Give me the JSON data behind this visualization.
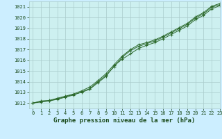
{
  "title": "Graphe pression niveau de la mer (hPa)",
  "bg_color": "#cceeff",
  "plot_bg_color": "#cdf0f0",
  "grid_color": "#aacccc",
  "line_color": "#2d6a2d",
  "marker_color": "#2d6a2d",
  "text_color": "#1a4a1a",
  "xlim": [
    -0.5,
    23
  ],
  "ylim": [
    1011.5,
    1021.5
  ],
  "yticks": [
    1012,
    1013,
    1014,
    1015,
    1016,
    1017,
    1018,
    1019,
    1020,
    1021
  ],
  "xticks": [
    0,
    1,
    2,
    3,
    4,
    5,
    6,
    7,
    8,
    9,
    10,
    11,
    12,
    13,
    14,
    15,
    16,
    17,
    18,
    19,
    20,
    21,
    22,
    23
  ],
  "series": [
    [
      1012.0,
      1012.15,
      1012.2,
      1012.4,
      1012.6,
      1012.8,
      1013.0,
      1013.3,
      1013.9,
      1014.5,
      1015.5,
      1016.1,
      1016.6,
      1017.1,
      1017.4,
      1017.65,
      1018.0,
      1018.4,
      1018.8,
      1019.2,
      1019.8,
      1020.2,
      1020.8,
      1021.1
    ],
    [
      1012.0,
      1012.1,
      1012.2,
      1012.35,
      1012.55,
      1012.75,
      1013.05,
      1013.35,
      1014.0,
      1014.6,
      1015.4,
      1016.3,
      1016.9,
      1017.3,
      1017.55,
      1017.8,
      1018.15,
      1018.55,
      1018.95,
      1019.35,
      1019.95,
      1020.35,
      1020.95,
      1021.2
    ],
    [
      1012.0,
      1012.2,
      1012.25,
      1012.45,
      1012.65,
      1012.85,
      1013.15,
      1013.5,
      1014.1,
      1014.75,
      1015.6,
      1016.4,
      1017.0,
      1017.45,
      1017.65,
      1017.9,
      1018.25,
      1018.65,
      1019.05,
      1019.45,
      1020.05,
      1020.45,
      1021.05,
      1021.3
    ]
  ]
}
